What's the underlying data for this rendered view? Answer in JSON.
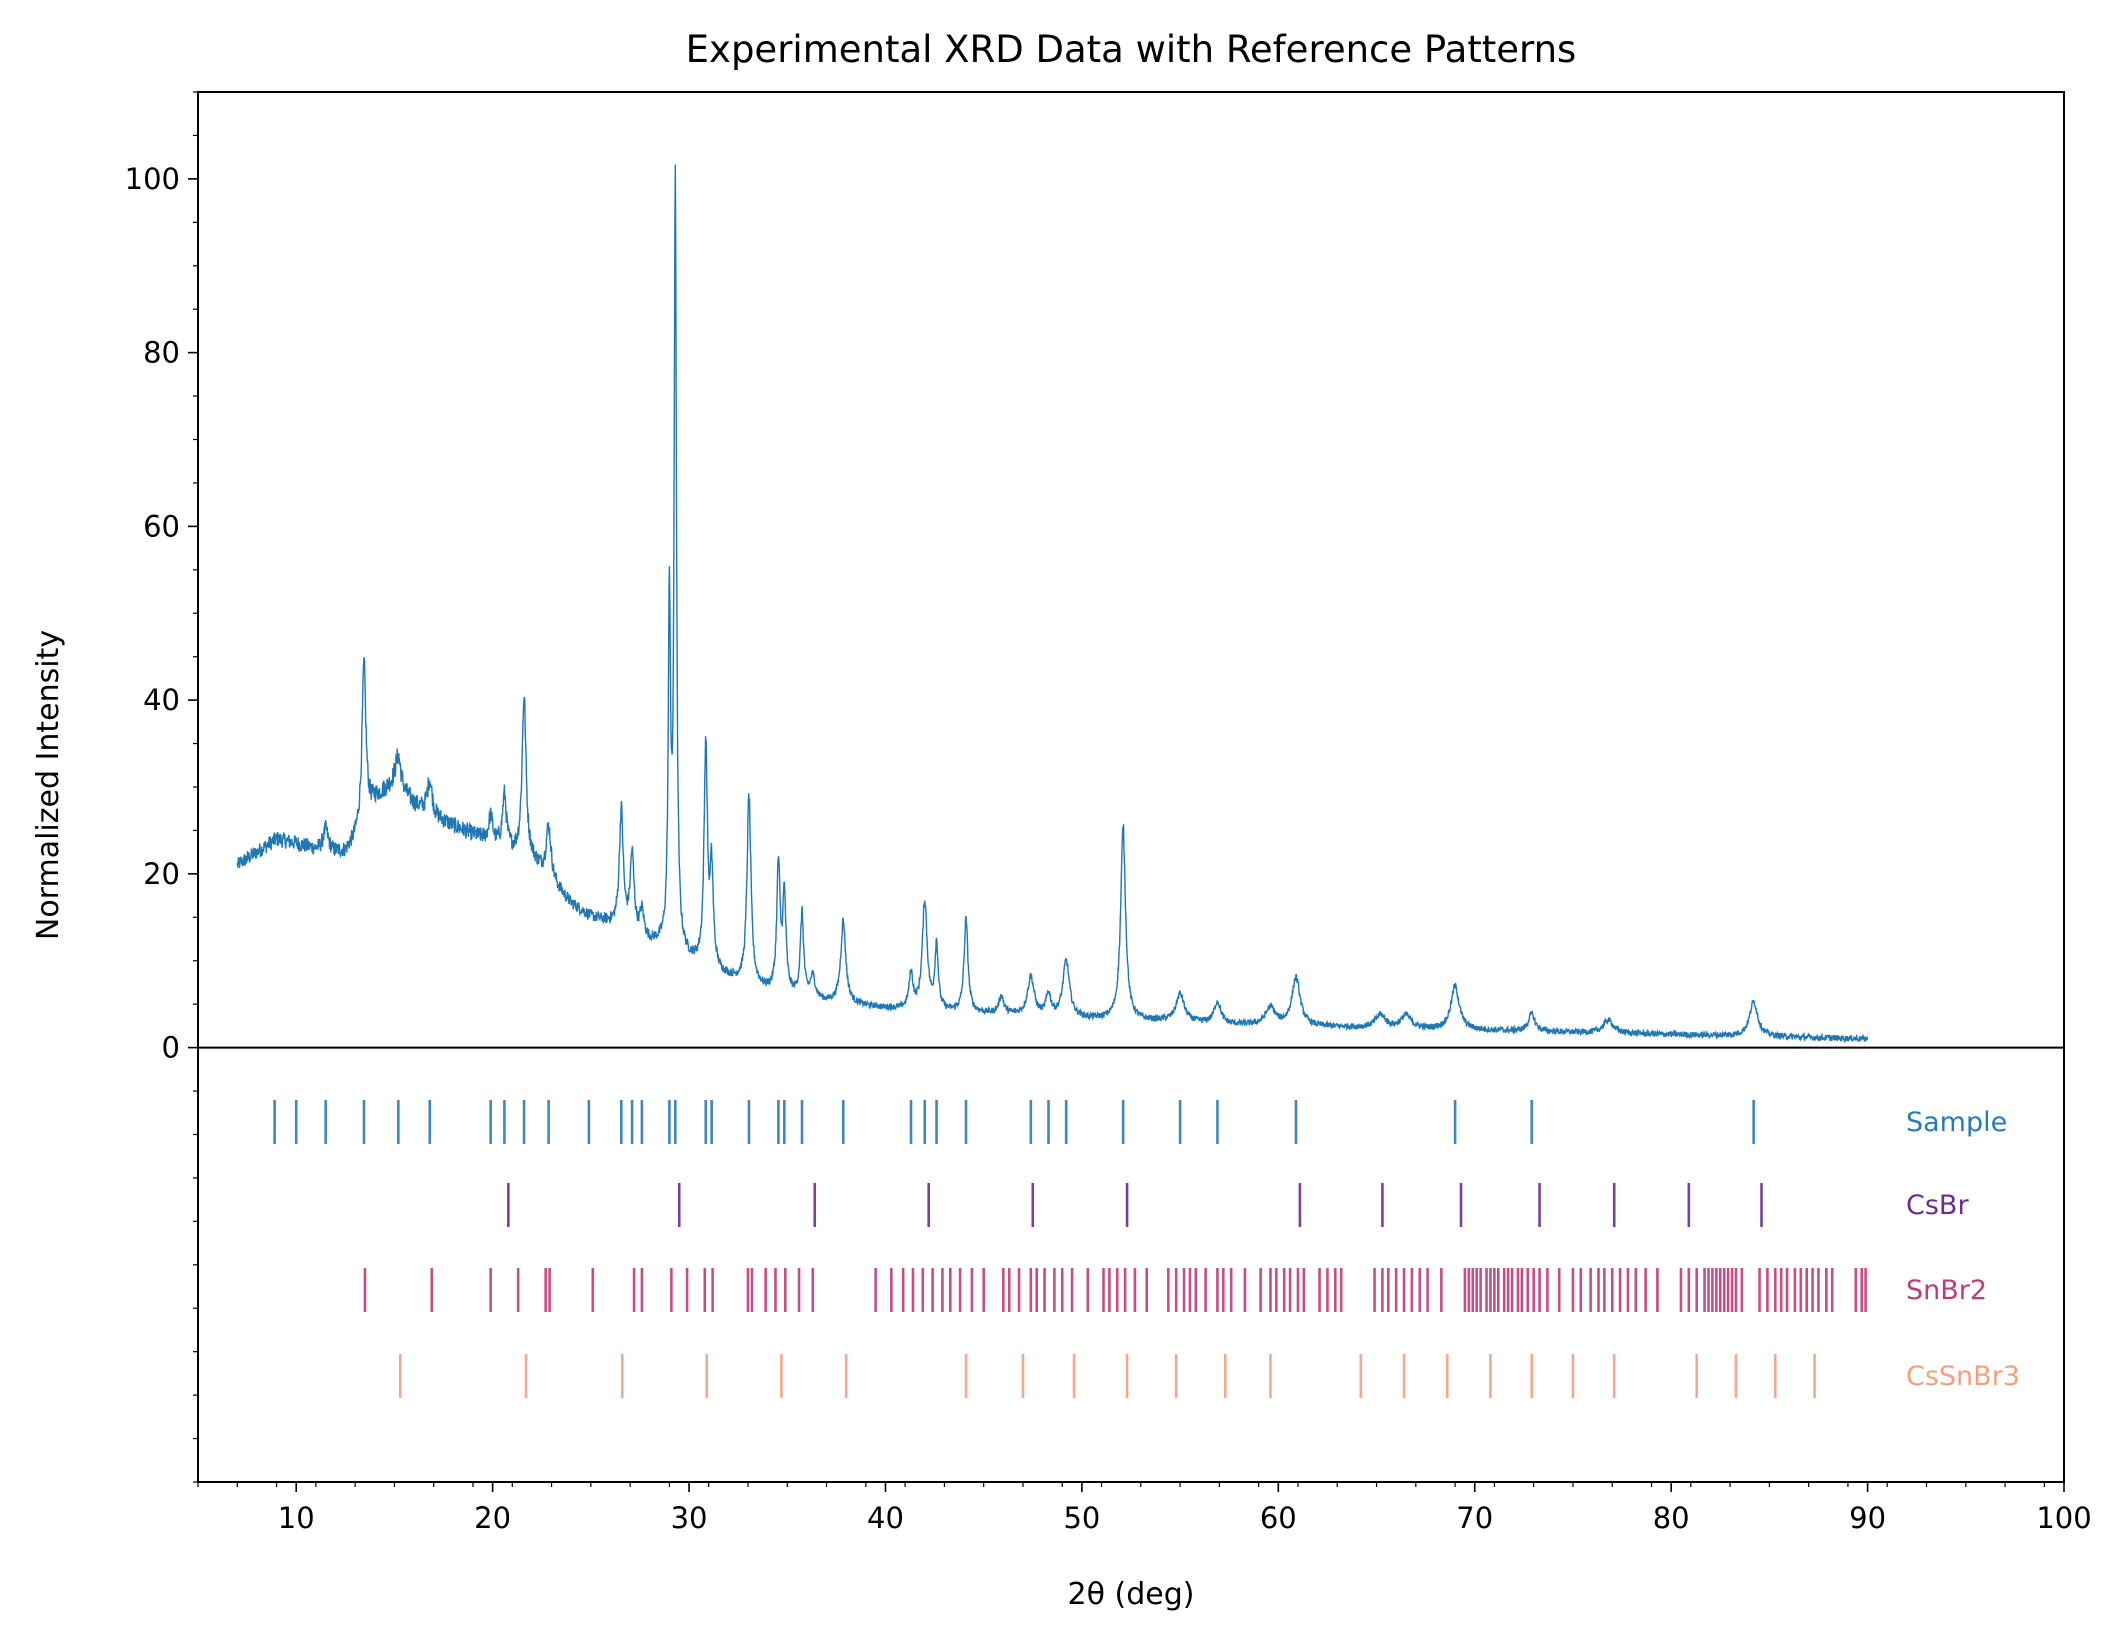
{
  "chart_data": {
    "type": "line",
    "title": "Experimental XRD Data with Reference Patterns",
    "xlabel": "2θ (deg)",
    "ylabel": "Normalized Intensity",
    "xlim": [
      5,
      100
    ],
    "ylim": [
      -50,
      110
    ],
    "x_ticks": [
      10,
      20,
      30,
      40,
      50,
      60,
      70,
      80,
      90,
      100
    ],
    "y_ticks": [
      0,
      20,
      40,
      60,
      80,
      100
    ],
    "grid": false,
    "colors": {
      "Sample": "#2a7ab5",
      "CsBr": "#6a2c8e",
      "SnBr2": "#c13b78",
      "CsSnBr3": "#f4a07f"
    },
    "series": [
      {
        "name": "",
        "color": "#1f77b4",
        "x": [
          7.0,
          8.0,
          9.0,
          10.0,
          11.0,
          12.0,
          12.5,
          13.0,
          14.0,
          15.0,
          16.0,
          17.0,
          18.0,
          19.0,
          20.0,
          21.0,
          22.0,
          23.0,
          24.0,
          25.0,
          26.0,
          27.0,
          28.0,
          29.0,
          30.0,
          31.0,
          32.0,
          33.0,
          34.0,
          35.0,
          36.0,
          37.0,
          38.0,
          40.0,
          42.0,
          44.0,
          46.0,
          48.0,
          50.0,
          52.0,
          54.0,
          56.0,
          58.0,
          60.0,
          62.0,
          64.0,
          66.0,
          68.0,
          70.0,
          72.0,
          74.0,
          76.0,
          78.0,
          80.0,
          82.0,
          84.0,
          86.0,
          88.0,
          90.0
        ],
        "y": [
          21.0,
          22.5,
          24.0,
          23.5,
          22.8,
          22.5,
          22.5,
          24.0,
          28.5,
          30.5,
          28.0,
          26.5,
          25.5,
          24.5,
          23.5,
          22.5,
          21.5,
          19.0,
          16.5,
          15.0,
          14.2,
          13.0,
          12.0,
          11.5,
          10.0,
          9.0,
          8.0,
          7.2,
          6.5,
          6.0,
          5.6,
          5.2,
          5.0,
          4.5,
          4.2,
          4.0,
          3.8,
          3.5,
          3.3,
          3.1,
          3.0,
          2.8,
          2.6,
          2.5,
          2.4,
          2.3,
          2.2,
          2.1,
          2.0,
          1.9,
          1.8,
          1.7,
          1.6,
          1.5,
          1.4,
          1.3,
          1.2,
          1.1,
          1.0
        ]
      }
    ],
    "peaks": [
      {
        "x": 11.5,
        "h": 2.5,
        "w": 0.15
      },
      {
        "x": 13.45,
        "h": 18,
        "w": 0.12
      },
      {
        "x": 15.2,
        "h": 3.5,
        "w": 0.15
      },
      {
        "x": 16.8,
        "h": 4,
        "w": 0.15
      },
      {
        "x": 19.9,
        "h": 3,
        "w": 0.12
      },
      {
        "x": 20.6,
        "h": 6,
        "w": 0.12
      },
      {
        "x": 21.6,
        "h": 18.5,
        "w": 0.12
      },
      {
        "x": 22.85,
        "h": 6,
        "w": 0.15
      },
      {
        "x": 26.55,
        "h": 13.5,
        "w": 0.12
      },
      {
        "x": 27.1,
        "h": 9,
        "w": 0.12
      },
      {
        "x": 27.6,
        "h": 3,
        "w": 0.12
      },
      {
        "x": 29.0,
        "h": 39,
        "w": 0.07
      },
      {
        "x": 29.3,
        "h": 88.5,
        "w": 0.07
      },
      {
        "x": 30.85,
        "h": 25.5,
        "w": 0.1
      },
      {
        "x": 31.15,
        "h": 11,
        "w": 0.1
      },
      {
        "x": 33.05,
        "h": 21.5,
        "w": 0.12
      },
      {
        "x": 34.55,
        "h": 14.5,
        "w": 0.1
      },
      {
        "x": 34.85,
        "h": 11,
        "w": 0.1
      },
      {
        "x": 35.75,
        "h": 9.5,
        "w": 0.1
      },
      {
        "x": 36.3,
        "h": 2.5,
        "w": 0.15
      },
      {
        "x": 37.85,
        "h": 9.5,
        "w": 0.15
      },
      {
        "x": 41.3,
        "h": 4,
        "w": 0.12
      },
      {
        "x": 42.0,
        "h": 12.5,
        "w": 0.15
      },
      {
        "x": 42.6,
        "h": 7.5,
        "w": 0.1
      },
      {
        "x": 44.1,
        "h": 10.5,
        "w": 0.12
      },
      {
        "x": 45.9,
        "h": 2,
        "w": 0.15
      },
      {
        "x": 47.4,
        "h": 4.5,
        "w": 0.2
      },
      {
        "x": 48.3,
        "h": 2.5,
        "w": 0.15
      },
      {
        "x": 49.2,
        "h": 6.5,
        "w": 0.2
      },
      {
        "x": 52.1,
        "h": 22,
        "w": 0.15
      },
      {
        "x": 55.0,
        "h": 3.2,
        "w": 0.25
      },
      {
        "x": 56.9,
        "h": 2.5,
        "w": 0.2
      },
      {
        "x": 59.6,
        "h": 2,
        "w": 0.3
      },
      {
        "x": 60.9,
        "h": 5.5,
        "w": 0.25
      },
      {
        "x": 65.2,
        "h": 1.5,
        "w": 0.3
      },
      {
        "x": 66.5,
        "h": 1.5,
        "w": 0.3
      },
      {
        "x": 69.0,
        "h": 5,
        "w": 0.25
      },
      {
        "x": 72.9,
        "h": 2,
        "w": 0.2
      },
      {
        "x": 76.8,
        "h": 1.5,
        "w": 0.3
      },
      {
        "x": 84.2,
        "h": 4,
        "w": 0.25
      }
    ],
    "reference_patterns": [
      {
        "name": "Sample",
        "color": "#2a7ab5",
        "positions": [
          8.9,
          10.0,
          11.5,
          13.45,
          15.2,
          16.8,
          19.9,
          20.6,
          21.6,
          22.85,
          24.9,
          26.55,
          27.1,
          27.6,
          29.0,
          29.3,
          30.85,
          31.15,
          33.05,
          34.55,
          34.85,
          35.75,
          37.85,
          41.3,
          42.0,
          42.6,
          44.1,
          47.4,
          48.3,
          49.2,
          52.1,
          55.0,
          56.9,
          60.9,
          69.0,
          72.9,
          84.2
        ]
      },
      {
        "name": "CsBr",
        "color": "#6a2c8e",
        "positions": [
          20.8,
          29.5,
          36.4,
          42.2,
          47.5,
          52.3,
          61.1,
          65.3,
          69.3,
          73.3,
          77.1,
          80.9,
          84.6
        ]
      },
      {
        "name": "SnBr2",
        "color": "#c13b78",
        "positions": [
          13.5,
          16.9,
          19.9,
          21.3,
          22.7,
          22.9,
          25.1,
          27.2,
          27.6,
          29.1,
          29.9,
          30.8,
          31.2,
          33.0,
          33.2,
          33.9,
          34.4,
          34.9,
          35.6,
          36.3,
          39.5,
          40.3,
          40.9,
          41.4,
          41.9,
          42.4,
          42.9,
          43.3,
          43.8,
          44.4,
          45.0,
          46.0,
          46.3,
          46.8,
          47.4,
          47.7,
          48.1,
          48.6,
          49.0,
          49.5,
          50.3,
          51.1,
          51.4,
          51.8,
          52.2,
          52.7,
          53.3,
          54.4,
          54.8,
          55.2,
          55.5,
          55.8,
          56.3,
          56.9,
          57.2,
          57.6,
          58.3,
          59.1,
          59.6,
          59.9,
          60.3,
          60.6,
          61.0,
          61.3,
          62.1,
          62.5,
          62.9,
          63.2,
          64.9,
          65.3,
          65.6,
          66.0,
          66.4,
          66.8,
          67.2,
          67.6,
          68.3,
          69.5,
          69.7,
          69.9,
          70.1,
          70.3,
          70.6,
          70.8,
          71.0,
          71.2,
          71.5,
          71.7,
          71.9,
          72.2,
          72.4,
          72.7,
          73.0,
          73.3,
          73.7,
          74.3,
          75.0,
          75.4,
          75.9,
          76.3,
          76.6,
          77.0,
          77.4,
          77.8,
          78.2,
          78.7,
          79.3,
          80.5,
          80.9,
          81.3,
          81.7,
          81.9,
          82.1,
          82.3,
          82.5,
          82.7,
          82.9,
          83.1,
          83.3,
          83.6,
          84.5,
          84.9,
          85.3,
          85.6,
          85.9,
          86.3,
          86.6,
          86.9,
          87.2,
          87.5,
          87.9,
          88.2,
          89.4,
          89.7,
          89.9
        ]
      },
      {
        "name": "CsSnBr3",
        "color": "#f4a07f",
        "positions": [
          15.3,
          21.7,
          26.6,
          30.9,
          34.7,
          38.0,
          44.1,
          47.0,
          49.6,
          52.3,
          54.8,
          57.3,
          59.6,
          64.2,
          66.4,
          68.6,
          70.8,
          72.9,
          75.0,
          77.1,
          81.3,
          83.3,
          85.3,
          87.3
        ]
      }
    ]
  }
}
